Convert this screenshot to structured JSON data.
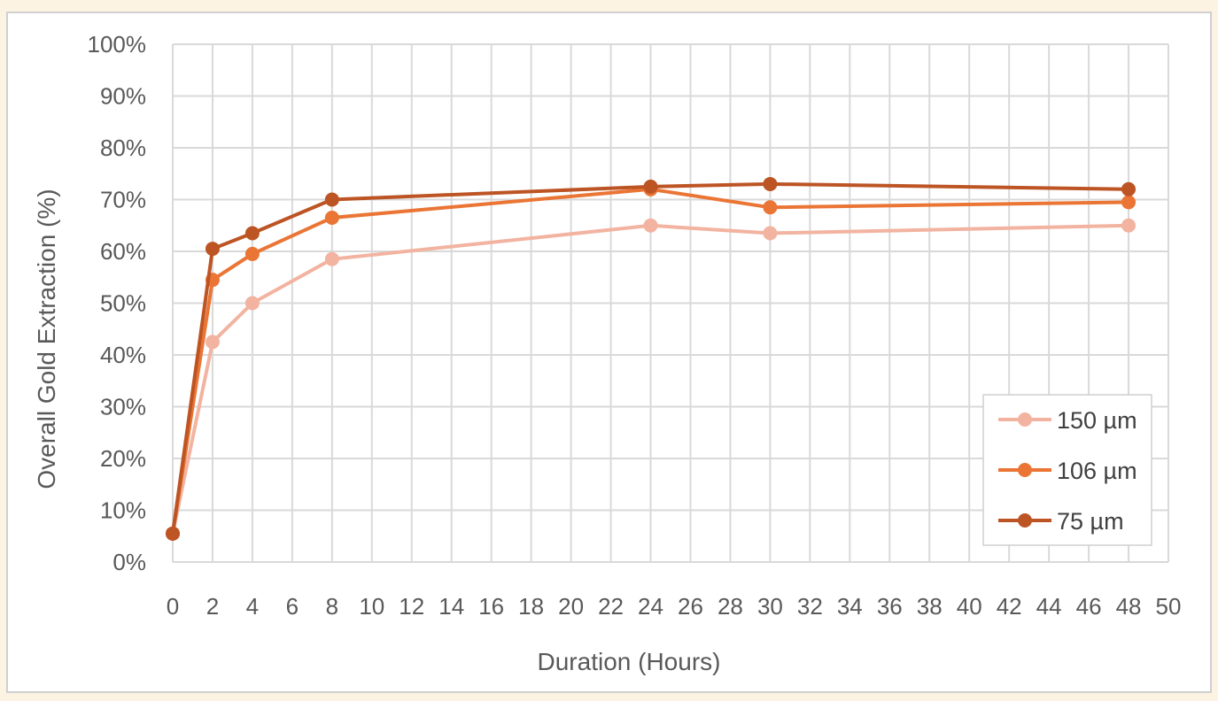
{
  "chart_data": {
    "type": "line",
    "title": "",
    "xlabel": "Duration (Hours)",
    "ylabel": "Overall Gold Extraction (%)",
    "xlim": [
      0,
      50
    ],
    "x_tick_step": 2,
    "ylim": [
      0,
      100
    ],
    "y_tick_step": 10,
    "y_tick_suffix": "%",
    "grid": true,
    "legend_position": "bottom-right",
    "x": [
      0,
      2,
      4,
      8,
      24,
      30,
      48
    ],
    "series": [
      {
        "name": "150 µm",
        "color": "#f2b3a0",
        "values": [
          5.5,
          42.5,
          50,
          58.5,
          65,
          63.5,
          65
        ]
      },
      {
        "name": "106 µm",
        "color": "#ea7535",
        "values": [
          5.5,
          54.5,
          59.5,
          66.5,
          72,
          68.5,
          69.5
        ]
      },
      {
        "name": "75 µm",
        "color": "#bd5424",
        "values": [
          5.5,
          60.5,
          63.5,
          70,
          72.5,
          73,
          72
        ]
      }
    ]
  }
}
